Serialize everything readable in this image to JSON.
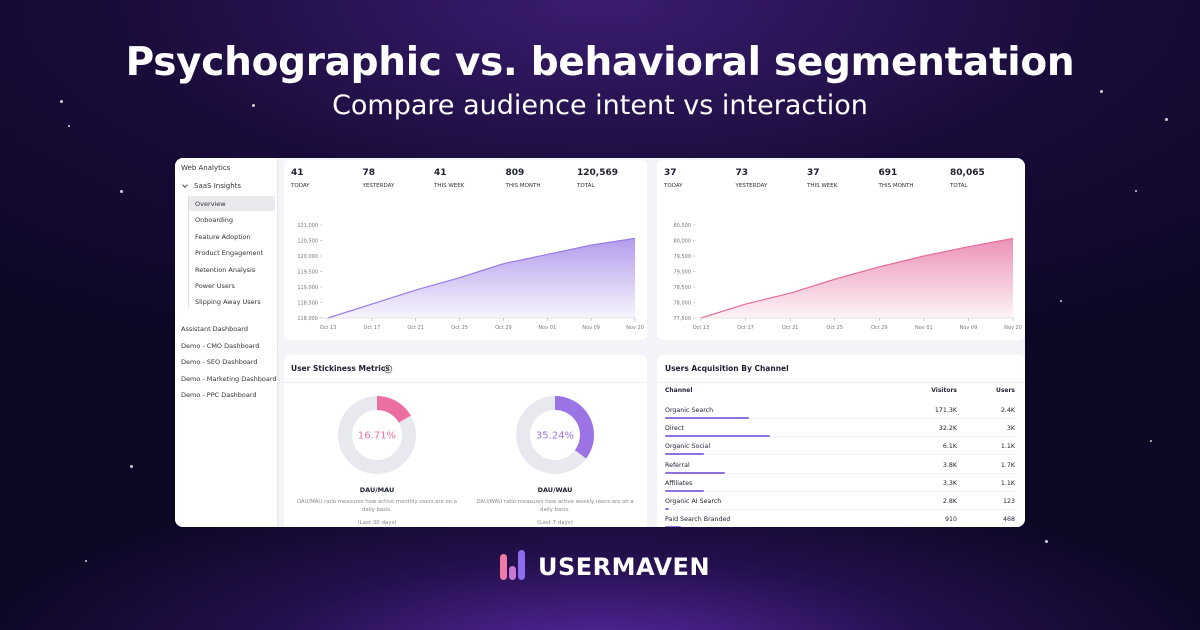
{
  "header": {
    "title": "Psychographic vs. behavioral segmentation",
    "subtitle": "Compare audience intent vs interaction"
  },
  "sidebar": {
    "title": "Web Analytics",
    "group": "SaaS Insights",
    "group_items": [
      "Overview",
      "Onboarding",
      "Feature Adoption",
      "Product Engagement",
      "Retention Analysis",
      "Power Users",
      "Slipping Away Users"
    ],
    "other_items": [
      "Assistant Dashboard",
      "Demo - CMO Dashboard",
      "Demo - SEO Dashboard",
      "Demo - Marketing Dashboard",
      "Demo - PPC Dashboard"
    ]
  },
  "stat_panels": [
    [
      {
        "value": "41",
        "label": "TODAY"
      },
      {
        "value": "78",
        "label": "YESTERDAY"
      },
      {
        "value": "41",
        "label": "THIS WEEK"
      },
      {
        "value": "809",
        "label": "THIS MONTH"
      },
      {
        "value": "120,569",
        "label": "TOTAL"
      }
    ],
    [
      {
        "value": "37",
        "label": "TODAY"
      },
      {
        "value": "73",
        "label": "YESTERDAY"
      },
      {
        "value": "37",
        "label": "THIS WEEK"
      },
      {
        "value": "691",
        "label": "THIS MONTH"
      },
      {
        "value": "80,065",
        "label": "TOTAL"
      }
    ]
  ],
  "chart_data": [
    {
      "type": "area",
      "color": "#9a7be6",
      "categories": [
        "Oct 13",
        "Oct 17",
        "Oct 21",
        "Oct 25",
        "Oct 29",
        "Nov 01",
        "Nov 09",
        "Nov 20"
      ],
      "values": [
        118000,
        118450,
        118900,
        119300,
        119750,
        120050,
        120350,
        120569
      ],
      "ylim": [
        118000,
        121000
      ],
      "yticks": [
        {
          "value": 121000,
          "label": "121,000"
        },
        {
          "value": 120500,
          "label": "120,500"
        },
        {
          "value": 120000,
          "label": "120,000"
        },
        {
          "value": 119500,
          "label": "119,500"
        },
        {
          "value": 119000,
          "label": "119,000"
        },
        {
          "value": 118500,
          "label": "118,500"
        },
        {
          "value": 118000,
          "label": "118,000"
        }
      ]
    },
    {
      "type": "area",
      "color": "#e56d9e",
      "categories": [
        "Oct 13",
        "Oct 17",
        "Oct 21",
        "Oct 25",
        "Oct 29",
        "Nov 01",
        "Nov 09",
        "Nov 20"
      ],
      "values": [
        77500,
        77950,
        78300,
        78750,
        79150,
        79500,
        79800,
        80065
      ],
      "ylim": [
        77500,
        80500
      ],
      "yticks": [
        {
          "value": 80500,
          "label": "80,500"
        },
        {
          "value": 80000,
          "label": "80,000"
        },
        {
          "value": 79500,
          "label": "79,500"
        },
        {
          "value": 79000,
          "label": "79,000"
        },
        {
          "value": 78500,
          "label": "78,500"
        },
        {
          "value": 78000,
          "label": "78,000"
        },
        {
          "value": 77500,
          "label": "77,500"
        }
      ]
    }
  ],
  "stickiness": {
    "title": "User Stickiness Metrics",
    "donuts": [
      {
        "value": 16.71,
        "label": "16.71%",
        "color": "#ec6fa3",
        "name": "DAU/MAU",
        "description": "DAU/MAU ratio measures how active monthly users are on a daily basis.",
        "period": "(Last 30 days)"
      },
      {
        "value": 35.24,
        "label": "35.24%",
        "color": "#9a74e4",
        "name": "DAU/WAU",
        "description": "DAU/WAU ratio measures how active weekly users are on a daily basis.",
        "period": "(Last 7 days)"
      }
    ]
  },
  "acquisition": {
    "title": "Users Acquisition By Channel",
    "columns": [
      "Channel",
      "Visitors",
      "Users"
    ],
    "rows": [
      [
        "Organic Search",
        "171.3K",
        {
          "value": 2400,
          "label": "2.4K"
        }
      ],
      [
        "Direct",
        "32.2K",
        {
          "value": 3000,
          "label": "3K"
        }
      ],
      [
        "Organic Social",
        "6.1K",
        {
          "value": 1100,
          "label": "1.1K"
        }
      ],
      [
        "Referral",
        "3.8K",
        {
          "value": 1700,
          "label": "1.7K"
        }
      ],
      [
        "Affiliates",
        "3.3K",
        {
          "value": 1100,
          "label": "1.1K"
        }
      ],
      [
        "Organic AI Search",
        "2.8K",
        123
      ],
      [
        "Paid Search Branded",
        "910",
        468
      ]
    ]
  },
  "logo": {
    "text": "USERMAVEN"
  }
}
